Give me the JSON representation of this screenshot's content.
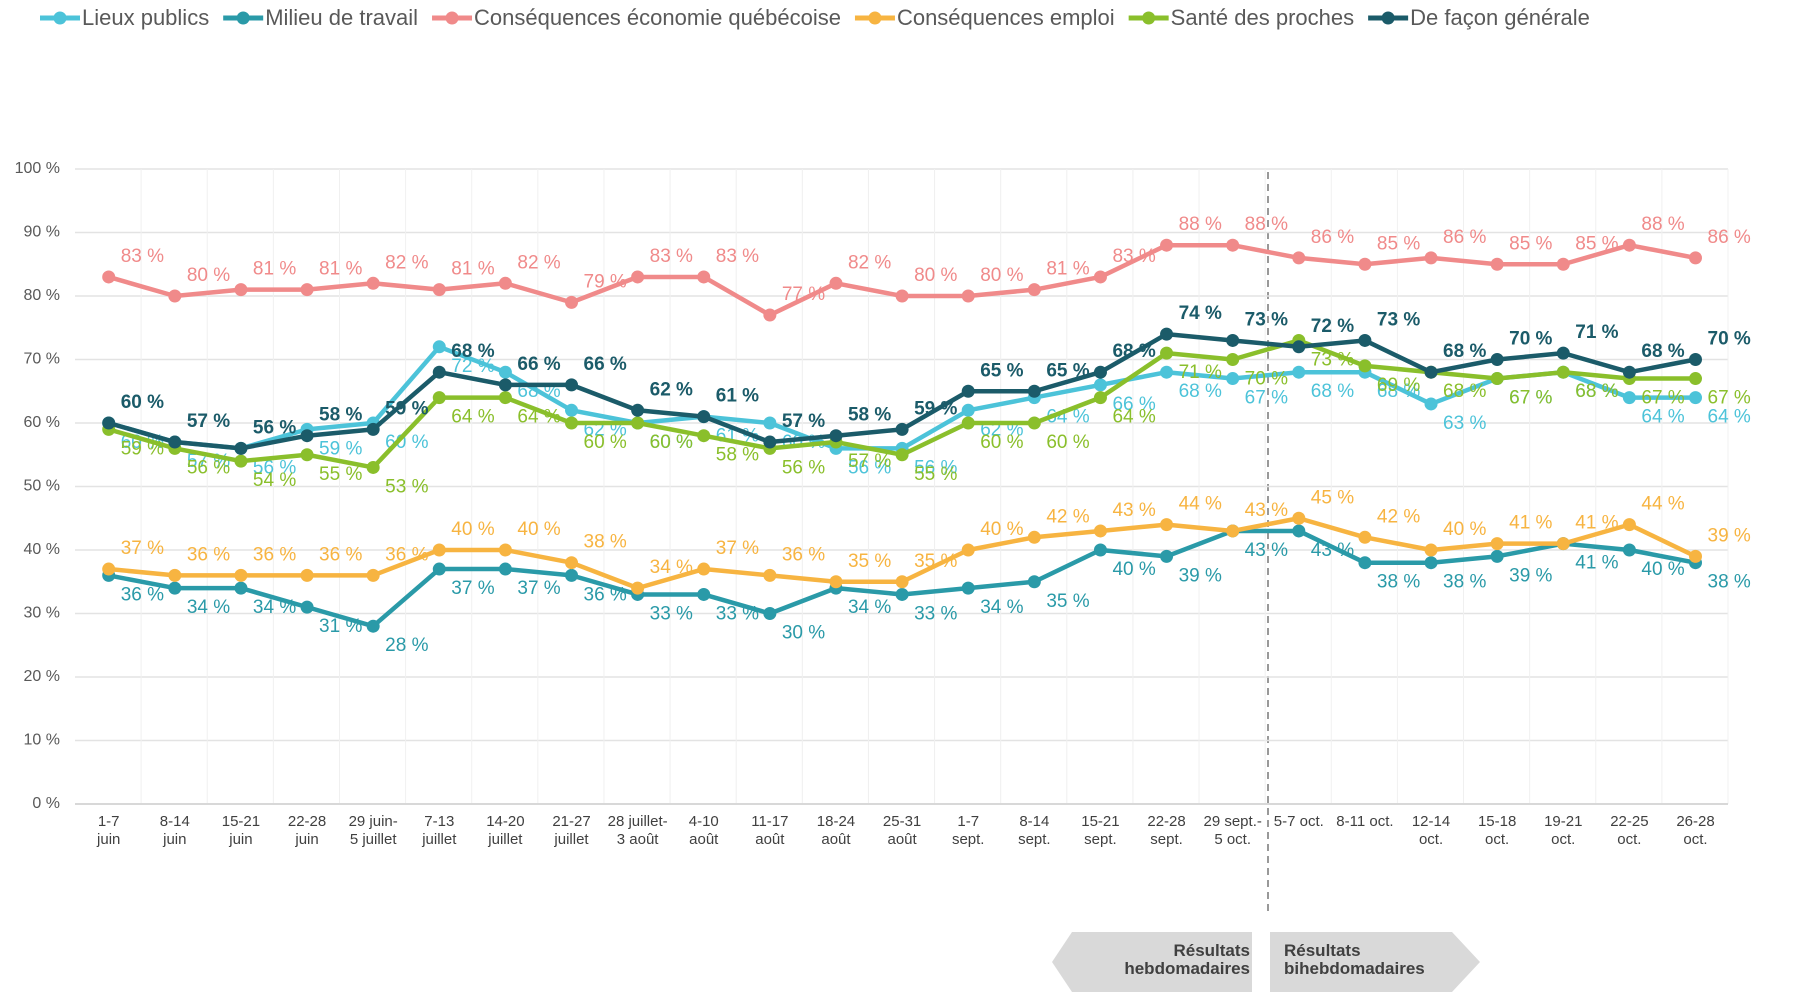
{
  "chart_data": {
    "type": "line",
    "categories": [
      "1-7\njuin",
      "8-14\njuin",
      "15-21\njuin",
      "22-28\njuin",
      "29 juin-\n5 juillet",
      "7-13\njuillet",
      "14-20\njuillet",
      "21-27\njuillet",
      "28 juillet-\n3 août",
      "4-10\naoût",
      "11-17\naoût",
      "18-24\naoût",
      "25-31\naoût",
      "1-7\nsept.",
      "8-14\nsept.",
      "15-21\nsept.",
      "22-28\nsept.",
      "29 sept.-\n5 oct.",
      "5-7 oct.",
      "8-11 oct.",
      "12-14\noct.",
      "15-18\noct.",
      "19-21\noct.",
      "22-25\noct.",
      "26-28\noct."
    ],
    "ylim": [
      0,
      100
    ],
    "yticks": [
      {
        "value": 0,
        "label": "0 %"
      },
      {
        "value": 10,
        "label": "10 %"
      },
      {
        "value": 20,
        "label": "20 %"
      },
      {
        "value": 30,
        "label": "30 %"
      },
      {
        "value": 40,
        "label": "40 %"
      },
      {
        "value": 50,
        "label": "50 %"
      },
      {
        "value": 60,
        "label": "60 %"
      },
      {
        "value": 70,
        "label": "70 %"
      },
      {
        "value": 80,
        "label": "80 %"
      },
      {
        "value": 90,
        "label": "90 %"
      },
      {
        "value": 100,
        "label": "100 %"
      }
    ],
    "grid": true,
    "legend": "top",
    "annotations": [
      "Résultats\nhebdomadaires",
      "Résultats\nbihebdomadaires"
    ],
    "series": [
      {
        "name": "Lieux publics",
        "color": "#4cc3d9",
        "values": [
          60,
          57,
          56,
          59,
          60,
          72,
          68,
          62,
          60,
          61,
          60,
          56,
          56,
          62,
          64,
          66,
          68,
          67,
          68,
          68,
          63,
          67,
          68,
          64,
          64
        ],
        "value_labels": [
          "60 %",
          "57 %",
          "56 %",
          "59 %",
          "60 %",
          "72 %",
          "68 %",
          "62 %",
          "60 %",
          "61 %",
          "60 %",
          "56 %",
          "56 %",
          "62 %",
          "64 %",
          "66 %",
          "68 %",
          "67 %",
          "68 %",
          "68 %",
          "63 %",
          "67 %",
          "68 %",
          "64 %",
          "64 %"
        ]
      },
      {
        "name": "Milieu de travail",
        "color": "#2a9aa8",
        "values": [
          36,
          34,
          34,
          31,
          28,
          37,
          37,
          36,
          33,
          33,
          30,
          34,
          33,
          34,
          35,
          40,
          39,
          43,
          43,
          38,
          38,
          39,
          41,
          40,
          38
        ],
        "value_labels": [
          "36 %",
          "34 %",
          "34 %",
          "31 %",
          "28 %",
          "37 %",
          "37 %",
          "36 %",
          "33 %",
          "33 %",
          "30 %",
          "34 %",
          "33 %",
          "34 %",
          "35 %",
          "40 %",
          "39 %",
          "43 %",
          "43 %",
          "38 %",
          "38 %",
          "39 %",
          "41 %",
          "40 %",
          "38 %"
        ]
      },
      {
        "name": "Conséquences économie québécoise",
        "color": "#f08a8a",
        "values": [
          83,
          80,
          81,
          81,
          82,
          81,
          82,
          79,
          83,
          83,
          77,
          82,
          80,
          80,
          81,
          83,
          88,
          88,
          86,
          85,
          86,
          85,
          85,
          88,
          86
        ],
        "value_labels": [
          "83 %",
          "80 %",
          "81 %",
          "81 %",
          "82 %",
          "81 %",
          "82 %",
          "79 %",
          "83 %",
          "83 %",
          "77 %",
          "82 %",
          "80 %",
          "80 %",
          "81 %",
          "83 %",
          "88 %",
          "88 %",
          "86 %",
          "85 %",
          "86 %",
          "85 %",
          "85 %",
          "88 %",
          "86 %"
        ]
      },
      {
        "name": "Conséquences emploi",
        "color": "#f7b441",
        "values": [
          37,
          36,
          36,
          36,
          36,
          40,
          40,
          38,
          34,
          37,
          36,
          35,
          35,
          40,
          42,
          43,
          44,
          43,
          45,
          42,
          40,
          41,
          41,
          44,
          39
        ],
        "value_labels": [
          "37 %",
          "36 %",
          "36 %",
          "36 %",
          "36 %",
          "40 %",
          "40 %",
          "38 %",
          "34 %",
          "37 %",
          "36 %",
          "35 %",
          "35 %",
          "40 %",
          "42 %",
          "43 %",
          "44 %",
          "43 %",
          "45 %",
          "42 %",
          "40 %",
          "41 %",
          "41 %",
          "44 %",
          "39 %"
        ]
      },
      {
        "name": "Santé des proches",
        "color": "#8abf2b",
        "values": [
          59,
          56,
          54,
          55,
          53,
          64,
          64,
          60,
          60,
          58,
          56,
          57,
          55,
          60,
          60,
          64,
          71,
          70,
          73,
          69,
          68,
          67,
          68,
          67,
          67
        ],
        "value_labels": [
          "59 %",
          "56 %",
          "54 %",
          "55 %",
          "53 %",
          "64 %",
          "64 %",
          "60 %",
          "60 %",
          "58 %",
          "56 %",
          "57 %",
          "55 %",
          "60 %",
          "60 %",
          "64 %",
          "71 %",
          "70 %",
          "73 %",
          "69 %",
          "68 %",
          "67 %",
          "68 %",
          "67 %",
          "67 %"
        ]
      },
      {
        "name": "De façon générale",
        "color": "#1b5b69",
        "values": [
          60,
          57,
          56,
          58,
          59,
          68,
          66,
          66,
          62,
          61,
          57,
          58,
          59,
          65,
          65,
          68,
          74,
          73,
          72,
          73,
          68,
          70,
          71,
          68,
          70
        ],
        "value_labels": [
          "60 %",
          "57 %",
          "56 %",
          "58 %",
          "59 %",
          "68 %",
          "66 %",
          "66 %",
          "62 %",
          "61 %",
          "57 %",
          "58 %",
          "59 %",
          "65 %",
          "65 %",
          "68 %",
          "74 %",
          "73 %",
          "72 %",
          "73 %",
          "68 %",
          "70 %",
          "71 %",
          "68 %",
          "70 %"
        ]
      }
    ]
  }
}
